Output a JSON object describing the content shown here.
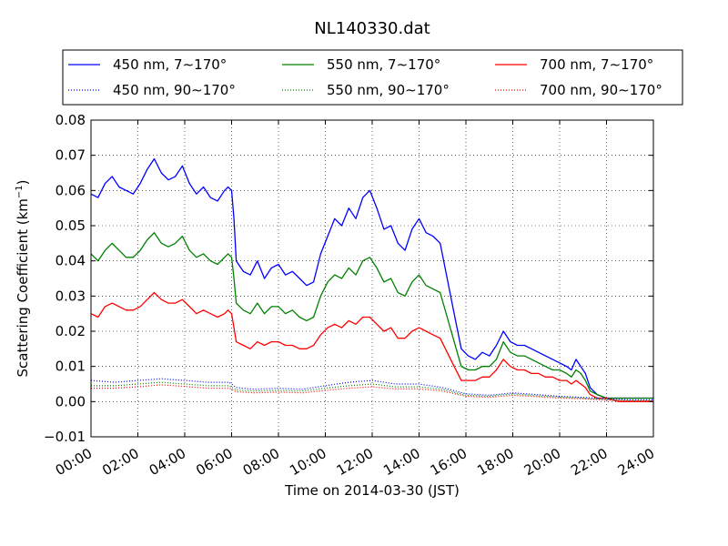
{
  "chart_data": {
    "type": "line",
    "title": "NL140330.dat",
    "xlabel": "Time on 2014-03-30 (JST)",
    "ylabel_main": "Scattering Coefficient (km",
    "ylabel_sup": "−1",
    "ylabel_end": ")",
    "xlim_hours": [
      0,
      24
    ],
    "ylim": [
      -0.01,
      0.08
    ],
    "x_ticks": [
      {
        "h": 0,
        "label": "00:00"
      },
      {
        "h": 2,
        "label": "02:00"
      },
      {
        "h": 4,
        "label": "04:00"
      },
      {
        "h": 6,
        "label": "06:00"
      },
      {
        "h": 8,
        "label": "08:00"
      },
      {
        "h": 10,
        "label": "10:00"
      },
      {
        "h": 12,
        "label": "12:00"
      },
      {
        "h": 14,
        "label": "14:00"
      },
      {
        "h": 16,
        "label": "16:00"
      },
      {
        "h": 18,
        "label": "18:00"
      },
      {
        "h": 20,
        "label": "20:00"
      },
      {
        "h": 22,
        "label": "22:00"
      },
      {
        "h": 24,
        "label": "24:00"
      }
    ],
    "y_ticks": [
      {
        "v": -0.01,
        "label": "−0.01"
      },
      {
        "v": 0.0,
        "label": "0.00"
      },
      {
        "v": 0.01,
        "label": "0.01"
      },
      {
        "v": 0.02,
        "label": "0.02"
      },
      {
        "v": 0.03,
        "label": "0.03"
      },
      {
        "v": 0.04,
        "label": "0.04"
      },
      {
        "v": 0.05,
        "label": "0.05"
      },
      {
        "v": 0.06,
        "label": "0.06"
      },
      {
        "v": 0.07,
        "label": "0.07"
      },
      {
        "v": 0.08,
        "label": "0.08"
      }
    ],
    "grid": true,
    "legend_placement": "top",
    "series": [
      {
        "name": "450 nm, 7∼170°",
        "color": "#0000ff",
        "dash": "solid",
        "x": [
          0,
          0.3,
          0.6,
          0.9,
          1.2,
          1.5,
          1.8,
          2.1,
          2.4,
          2.7,
          3.0,
          3.3,
          3.6,
          3.9,
          4.2,
          4.5,
          4.8,
          5.1,
          5.4,
          5.7,
          5.85,
          6.0,
          6.1,
          6.2,
          6.5,
          6.8,
          7.1,
          7.4,
          7.7,
          8.0,
          8.3,
          8.6,
          8.9,
          9.2,
          9.5,
          9.8,
          10.1,
          10.4,
          10.7,
          11.0,
          11.3,
          11.6,
          11.9,
          12.2,
          12.5,
          12.8,
          13.1,
          13.4,
          13.7,
          14.0,
          14.3,
          14.6,
          14.9,
          15.2,
          15.5,
          15.8,
          16.1,
          16.4,
          16.7,
          17.0,
          17.3,
          17.6,
          17.9,
          18.2,
          18.5,
          18.8,
          19.1,
          19.4,
          19.7,
          20.0,
          20.3,
          20.5,
          20.7,
          20.9,
          21.1,
          21.3,
          21.6,
          22.0,
          22.5,
          23.0,
          23.5,
          24.0
        ],
        "y": [
          0.059,
          0.058,
          0.062,
          0.064,
          0.061,
          0.06,
          0.059,
          0.062,
          0.066,
          0.069,
          0.065,
          0.063,
          0.064,
          0.067,
          0.062,
          0.059,
          0.061,
          0.058,
          0.057,
          0.06,
          0.061,
          0.06,
          0.052,
          0.04,
          0.037,
          0.036,
          0.04,
          0.035,
          0.038,
          0.039,
          0.036,
          0.037,
          0.035,
          0.033,
          0.034,
          0.042,
          0.047,
          0.052,
          0.05,
          0.055,
          0.052,
          0.058,
          0.06,
          0.055,
          0.049,
          0.05,
          0.045,
          0.043,
          0.049,
          0.052,
          0.048,
          0.047,
          0.045,
          0.035,
          0.025,
          0.015,
          0.013,
          0.012,
          0.014,
          0.013,
          0.016,
          0.02,
          0.017,
          0.016,
          0.016,
          0.015,
          0.014,
          0.013,
          0.012,
          0.011,
          0.01,
          0.009,
          0.012,
          0.01,
          0.008,
          0.004,
          0.002,
          0.001,
          0.001,
          0.001,
          0.001,
          0.001
        ]
      },
      {
        "name": "550 nm, 7∼170°",
        "color": "#008000",
        "dash": "solid",
        "x": [
          0,
          0.3,
          0.6,
          0.9,
          1.2,
          1.5,
          1.8,
          2.1,
          2.4,
          2.7,
          3.0,
          3.3,
          3.6,
          3.9,
          4.2,
          4.5,
          4.8,
          5.1,
          5.4,
          5.7,
          5.85,
          6.0,
          6.1,
          6.2,
          6.5,
          6.8,
          7.1,
          7.4,
          7.7,
          8.0,
          8.3,
          8.6,
          8.9,
          9.2,
          9.5,
          9.8,
          10.1,
          10.4,
          10.7,
          11.0,
          11.3,
          11.6,
          11.9,
          12.2,
          12.5,
          12.8,
          13.1,
          13.4,
          13.7,
          14.0,
          14.3,
          14.6,
          14.9,
          15.2,
          15.5,
          15.8,
          16.1,
          16.4,
          16.7,
          17.0,
          17.3,
          17.6,
          17.9,
          18.2,
          18.5,
          18.8,
          19.1,
          19.4,
          19.7,
          20.0,
          20.3,
          20.5,
          20.7,
          20.9,
          21.1,
          21.3,
          21.6,
          22.0,
          22.5,
          23.0,
          23.5,
          24.0
        ],
        "y": [
          0.042,
          0.04,
          0.043,
          0.045,
          0.043,
          0.041,
          0.041,
          0.043,
          0.046,
          0.048,
          0.045,
          0.044,
          0.045,
          0.047,
          0.043,
          0.041,
          0.042,
          0.04,
          0.039,
          0.041,
          0.042,
          0.041,
          0.035,
          0.028,
          0.026,
          0.025,
          0.028,
          0.025,
          0.027,
          0.027,
          0.025,
          0.026,
          0.024,
          0.023,
          0.024,
          0.03,
          0.034,
          0.036,
          0.035,
          0.038,
          0.036,
          0.04,
          0.041,
          0.038,
          0.034,
          0.035,
          0.031,
          0.03,
          0.034,
          0.036,
          0.033,
          0.032,
          0.031,
          0.024,
          0.017,
          0.01,
          0.009,
          0.009,
          0.01,
          0.01,
          0.012,
          0.017,
          0.014,
          0.013,
          0.013,
          0.012,
          0.011,
          0.01,
          0.009,
          0.009,
          0.008,
          0.007,
          0.009,
          0.008,
          0.006,
          0.003,
          0.002,
          0.001,
          0.001,
          0.001,
          0.001,
          0.001
        ]
      },
      {
        "name": "700 nm, 7∼170°",
        "color": "#ff0000",
        "dash": "solid",
        "x": [
          0,
          0.3,
          0.6,
          0.9,
          1.2,
          1.5,
          1.8,
          2.1,
          2.4,
          2.7,
          3.0,
          3.3,
          3.6,
          3.9,
          4.2,
          4.5,
          4.8,
          5.1,
          5.4,
          5.7,
          5.85,
          6.0,
          6.1,
          6.2,
          6.5,
          6.8,
          7.1,
          7.4,
          7.7,
          8.0,
          8.3,
          8.6,
          8.9,
          9.2,
          9.5,
          9.8,
          10.1,
          10.4,
          10.7,
          11.0,
          11.3,
          11.6,
          11.9,
          12.2,
          12.5,
          12.8,
          13.1,
          13.4,
          13.7,
          14.0,
          14.3,
          14.6,
          14.9,
          15.2,
          15.5,
          15.8,
          16.1,
          16.4,
          16.7,
          17.0,
          17.3,
          17.6,
          17.9,
          18.2,
          18.5,
          18.8,
          19.1,
          19.4,
          19.7,
          20.0,
          20.3,
          20.5,
          20.7,
          20.9,
          21.1,
          21.3,
          21.6,
          22.0,
          22.5,
          23.0,
          23.5,
          24.0
        ],
        "y": [
          0.025,
          0.024,
          0.027,
          0.028,
          0.027,
          0.026,
          0.026,
          0.027,
          0.029,
          0.031,
          0.029,
          0.028,
          0.028,
          0.029,
          0.027,
          0.025,
          0.026,
          0.025,
          0.024,
          0.025,
          0.026,
          0.025,
          0.021,
          0.017,
          0.016,
          0.015,
          0.017,
          0.016,
          0.017,
          0.017,
          0.016,
          0.016,
          0.015,
          0.015,
          0.016,
          0.019,
          0.021,
          0.022,
          0.021,
          0.023,
          0.022,
          0.024,
          0.024,
          0.022,
          0.02,
          0.021,
          0.018,
          0.018,
          0.02,
          0.021,
          0.02,
          0.019,
          0.018,
          0.014,
          0.01,
          0.006,
          0.006,
          0.006,
          0.007,
          0.007,
          0.009,
          0.012,
          0.01,
          0.009,
          0.009,
          0.008,
          0.008,
          0.007,
          0.007,
          0.006,
          0.006,
          0.005,
          0.006,
          0.005,
          0.004,
          0.002,
          0.001,
          0.001,
          0.0,
          0.0,
          0.0,
          0.0
        ]
      },
      {
        "name": "450 nm, 90∼170°",
        "color": "#0000ff",
        "dash": "dotted",
        "x": [
          0,
          1,
          2,
          3,
          4,
          5,
          5.9,
          6.2,
          7,
          8,
          9,
          10,
          11,
          12,
          13,
          14,
          15,
          16,
          17,
          18,
          19,
          20,
          21,
          22,
          23,
          24
        ],
        "y": [
          0.006,
          0.0055,
          0.006,
          0.0065,
          0.006,
          0.0055,
          0.0055,
          0.004,
          0.0035,
          0.0038,
          0.0035,
          0.0045,
          0.0055,
          0.006,
          0.005,
          0.005,
          0.004,
          0.0022,
          0.0018,
          0.0025,
          0.002,
          0.0015,
          0.0012,
          0.0008,
          0.0005,
          0.0005
        ]
      },
      {
        "name": "550 nm, 90∼170°",
        "color": "#008000",
        "dash": "dotted",
        "x": [
          0,
          1,
          2,
          3,
          4,
          5,
          5.9,
          6.2,
          7,
          8,
          9,
          10,
          11,
          12,
          13,
          14,
          15,
          16,
          17,
          18,
          19,
          20,
          21,
          22,
          23,
          24
        ],
        "y": [
          0.0045,
          0.0045,
          0.005,
          0.0055,
          0.005,
          0.0045,
          0.0045,
          0.0033,
          0.003,
          0.0032,
          0.003,
          0.0038,
          0.0045,
          0.005,
          0.0042,
          0.0042,
          0.0035,
          0.0018,
          0.0015,
          0.0022,
          0.0017,
          0.0013,
          0.001,
          0.0006,
          0.0003,
          0.0003
        ]
      },
      {
        "name": "700 nm, 90∼170°",
        "color": "#ff0000",
        "dash": "dotted",
        "x": [
          0,
          1,
          2,
          3,
          4,
          5,
          5.9,
          6.2,
          7,
          8,
          9,
          10,
          11,
          12,
          13,
          14,
          15,
          16,
          17,
          18,
          19,
          20,
          21,
          22,
          23,
          24
        ],
        "y": [
          0.0038,
          0.0038,
          0.0042,
          0.0048,
          0.0043,
          0.0038,
          0.0038,
          0.0028,
          0.0025,
          0.0027,
          0.0025,
          0.0032,
          0.0038,
          0.0042,
          0.0036,
          0.0036,
          0.003,
          0.0015,
          0.0012,
          0.0018,
          0.0014,
          0.001,
          0.0008,
          0.0004,
          0.0002,
          0.0002
        ]
      }
    ]
  }
}
